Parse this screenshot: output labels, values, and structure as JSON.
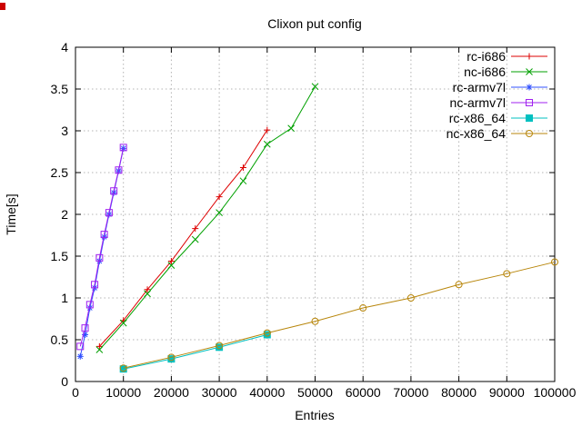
{
  "page": {
    "background": "#ffffff"
  },
  "chart_data": {
    "type": "line",
    "title": "Clixon put config",
    "xlabel": "Entries",
    "ylabel": "Time[s]",
    "xlim": [
      0,
      100000
    ],
    "ylim": [
      0,
      4
    ],
    "xticks": [
      0,
      10000,
      20000,
      30000,
      40000,
      50000,
      60000,
      70000,
      80000,
      90000,
      100000
    ],
    "yticks": [
      0,
      0.5,
      1,
      1.5,
      2,
      2.5,
      3,
      3.5,
      4
    ],
    "grid": true,
    "legend_position": "top-right-inside",
    "series": [
      {
        "name": "rc-i686",
        "color": "#dd0000",
        "marker": "plus",
        "x": [
          5000,
          10000,
          15000,
          20000,
          25000,
          30000,
          35000,
          40000
        ],
        "y": [
          0.42,
          0.73,
          1.1,
          1.44,
          1.83,
          2.21,
          2.56,
          3.01
        ]
      },
      {
        "name": "nc-i686",
        "color": "#00a000",
        "marker": "cross",
        "x": [
          5000,
          10000,
          15000,
          20000,
          25000,
          30000,
          35000,
          40000,
          45000,
          50000
        ],
        "y": [
          0.38,
          0.7,
          1.05,
          1.39,
          1.7,
          2.02,
          2.4,
          2.84,
          3.03,
          3.53
        ]
      },
      {
        "name": "rc-armv7l",
        "color": "#3050ff",
        "marker": "asterisk",
        "x": [
          1000,
          2000,
          3000,
          4000,
          5000,
          6000,
          7000,
          8000,
          9000,
          10000
        ],
        "y": [
          0.3,
          0.56,
          0.88,
          1.12,
          1.44,
          1.73,
          2.0,
          2.26,
          2.52,
          2.79
        ]
      },
      {
        "name": "nc-armv7l",
        "color": "#a020f0",
        "marker": "square-open",
        "x": [
          1000,
          2000,
          3000,
          4000,
          5000,
          6000,
          7000,
          8000,
          9000,
          10000
        ],
        "y": [
          0.42,
          0.64,
          0.92,
          1.16,
          1.48,
          1.76,
          2.02,
          2.28,
          2.53,
          2.8
        ]
      },
      {
        "name": "rc-x86_64",
        "color": "#00c0c0",
        "marker": "square-filled",
        "x": [
          10000,
          20000,
          30000,
          40000
        ],
        "y": [
          0.15,
          0.27,
          0.41,
          0.56
        ]
      },
      {
        "name": "nc-x86_64",
        "color": "#b8860b",
        "marker": "circle-open",
        "x": [
          10000,
          20000,
          30000,
          40000,
          50000,
          60000,
          70000,
          80000,
          90000,
          100000
        ],
        "y": [
          0.16,
          0.29,
          0.43,
          0.58,
          0.72,
          0.88,
          1.0,
          1.16,
          1.29,
          1.43
        ]
      }
    ]
  }
}
